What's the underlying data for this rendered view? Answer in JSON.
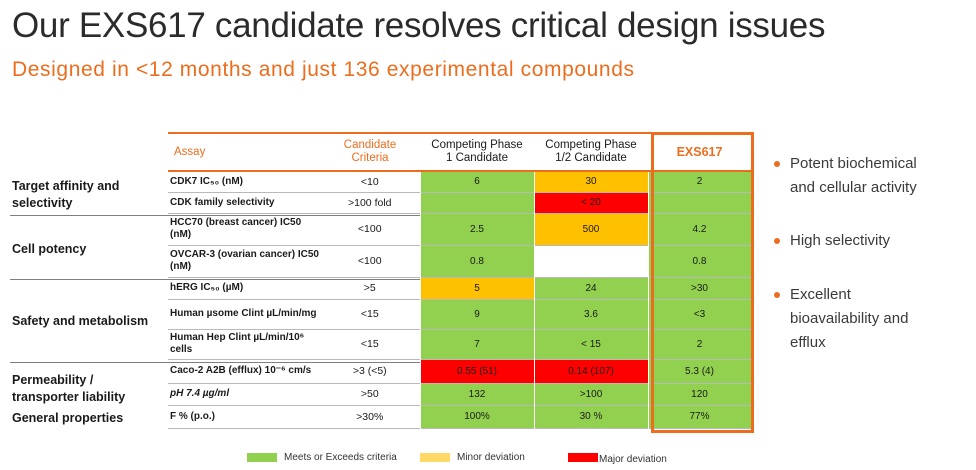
{
  "title": "Our EXS617 candidate resolves critical design issues",
  "subtitle": "Designed in <12 months and just 136 experimental compounds",
  "colors": {
    "accent": "#ec6d1d",
    "meets": "#92d050",
    "minor": "#ffc000",
    "major": "#ff0000"
  },
  "table": {
    "headers": {
      "assay": "Assay",
      "criteria": [
        "Candidate",
        "Criteria"
      ],
      "phase1": [
        "Competing Phase",
        "1 Candidate"
      ],
      "phase12": [
        "Competing Phase",
        "1/2 Candidate"
      ],
      "exs": "EXS617"
    },
    "groups": [
      {
        "lines": [
          "Target affinity and",
          "selectivity"
        ]
      },
      {
        "lines": [
          "Cell potency"
        ]
      },
      {
        "lines": [
          "Safety and metabolism"
        ]
      },
      {
        "lines": [
          "Permeability /",
          "transporter liability"
        ]
      },
      {
        "lines": [
          "General properties"
        ]
      }
    ],
    "rows": [
      {
        "assay": "CDK7 IC₅₀ (nM)",
        "criteria": "<10",
        "phase1": "6",
        "phase12": "30",
        "exs": "2"
      },
      {
        "assay": "CDK family selectivity",
        "criteria": ">100 fold",
        "phase1": "",
        "phase12": "< 20",
        "exs": ""
      },
      {
        "assay": "HCC70 (breast cancer) IC50 (nM)",
        "criteria": "<100",
        "phase1": "2.5",
        "phase12": "500",
        "exs": "4.2"
      },
      {
        "assay": "OVCAR-3 (ovarian cancer) IC50 (nM)",
        "criteria": "<100",
        "phase1": "0.8",
        "phase12": "",
        "exs": "0.8"
      },
      {
        "assay": "hERG IC₅₀ (µM)",
        "criteria": ">5",
        "phase1": "5",
        "phase12": "24",
        "exs": ">30"
      },
      {
        "assay": "Human µsome Clint µL/min/mg",
        "criteria": "<15",
        "phase1": "9",
        "phase12": "3.6",
        "exs": "<3"
      },
      {
        "assay": "Human Hep Clint  µL/min/10⁶ cells",
        "criteria": "<15",
        "phase1": "7",
        "phase12": "< 15",
        "exs": "2"
      },
      {
        "assay": "Caco-2 A2B (efflux) 10⁻⁶ cm/s",
        "criteria": ">3 (<5)",
        "phase1": "0.55 (51)",
        "phase12": "0.14 (107)",
        "exs": "5.3 (4)"
      },
      {
        "assay": "pH 7.4 µg/ml",
        "criteria": ">50",
        "phase1": "132",
        "phase12": ">100",
        "exs": "120"
      },
      {
        "assay": "F % (p.o.)",
        "criteria": ">30%",
        "phase1": "100%",
        "phase12": "30 %",
        "exs": "77%"
      }
    ]
  },
  "bullets": [
    {
      "lines": [
        "Potent biochemical",
        "and cellular activity"
      ]
    },
    {
      "lines": [
        "High selectivity"
      ]
    },
    {
      "lines": [
        "Excellent",
        "bioavailability and",
        "efflux"
      ]
    }
  ],
  "legend": [
    {
      "label": "Meets or Exceeds criteria",
      "color": "#92d050"
    },
    {
      "label": "Minor deviation",
      "color": "#ffd966"
    },
    {
      "label": "Major deviation",
      "color": "#ff0000"
    }
  ]
}
